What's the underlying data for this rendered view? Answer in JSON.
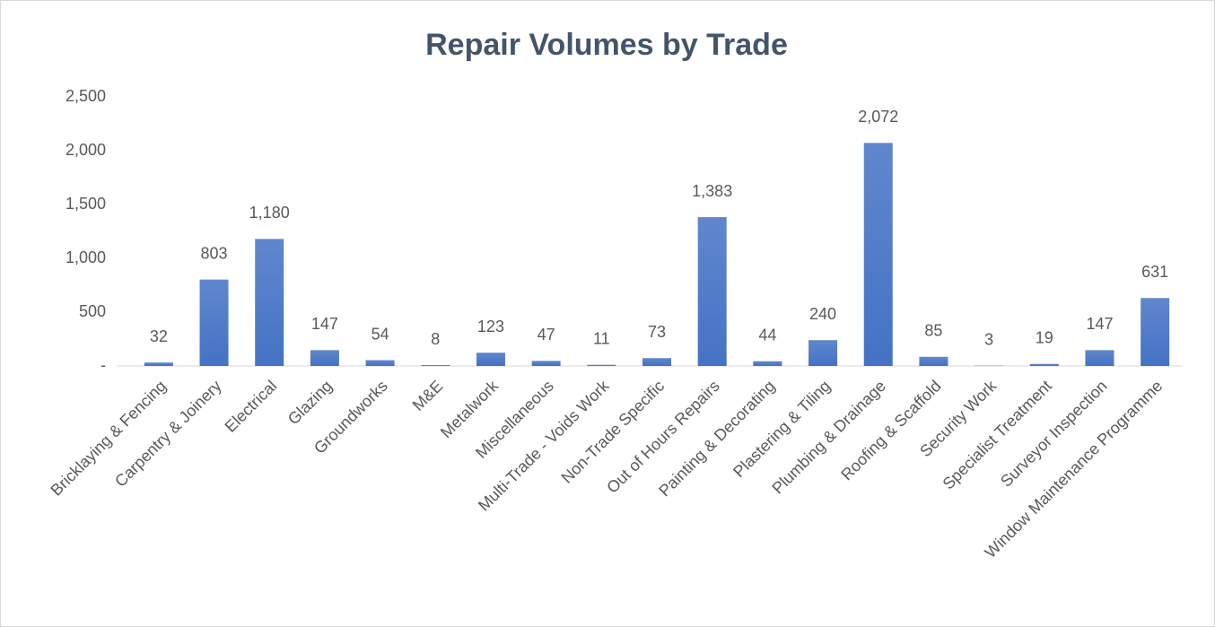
{
  "chart_data": {
    "type": "bar",
    "title": "Repair Volumes by Trade",
    "categories": [
      "Bricklaying & Fencing",
      "Carpentry & Joinery",
      "Electrical",
      "Glazing",
      "Groundworks",
      "M&E",
      "Metalwork",
      "Miscellaneous",
      "Multi-Trade - Voids Work",
      "Non-Trade Specific",
      "Out of Hours Repairs",
      "Painting & Decorating",
      "Plastering & Tiling",
      "Plumbing & Drainage",
      "Roofing & Scaffold",
      "Security Work",
      "Specialist Treatment",
      "Surveyor Inspection",
      "Window Maintenance Programme"
    ],
    "values": [
      32,
      803,
      1180,
      147,
      54,
      8,
      123,
      47,
      11,
      73,
      1383,
      44,
      240,
      2072,
      85,
      3,
      19,
      147,
      631
    ],
    "value_labels": [
      "32",
      "803",
      "1,180",
      "147",
      "54",
      "8",
      "123",
      "47",
      "11",
      "73",
      "1,383",
      "44",
      "240",
      "2,072",
      "85",
      "3",
      "19",
      "147",
      "631"
    ],
    "color": "#4472c4",
    "ylim": [
      0,
      2500
    ],
    "yticks": [
      {
        "value": 0,
        "label": "-"
      },
      500,
      {
        "value": 1000,
        "label": "1,000"
      },
      {
        "value": 1500,
        "label": "1,500"
      },
      {
        "value": 2000,
        "label": "2,000"
      },
      {
        "value": 2500,
        "label": "2,500"
      }
    ],
    "grid": false
  }
}
